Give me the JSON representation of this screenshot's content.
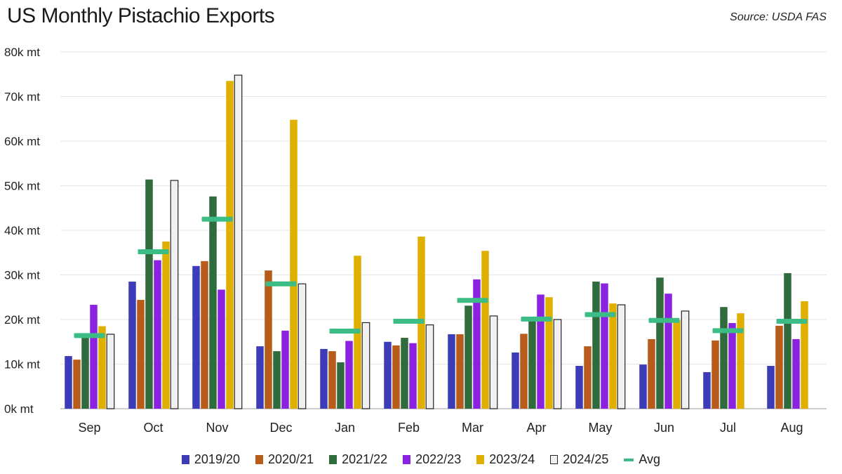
{
  "chart_data": {
    "type": "bar",
    "title": "US Monthly Pistachio Exports",
    "source": "Source: USDA FAS",
    "categories": [
      "Sep",
      "Oct",
      "Nov",
      "Dec",
      "Jan",
      "Feb",
      "Mar",
      "Apr",
      "May",
      "Jun",
      "Jul",
      "Aug"
    ],
    "ylim": [
      0,
      80
    ],
    "yticks": [
      0,
      10,
      20,
      30,
      40,
      50,
      60,
      70,
      80
    ],
    "ytick_labels": [
      "0k mt",
      "10k mt",
      "20k mt",
      "30k mt",
      "40k mt",
      "50k mt",
      "60k mt",
      "70k mt",
      "80k mt"
    ],
    "grid": true,
    "legend_position": "bottom",
    "series": [
      {
        "name": "2019/20",
        "color": "#3c3cb8",
        "values": [
          11.8,
          28.5,
          32.0,
          14.0,
          13.4,
          15.0,
          16.7,
          12.6,
          9.6,
          9.9,
          8.2,
          9.6
        ]
      },
      {
        "name": "2020/21",
        "color": "#b85c1c",
        "values": [
          11.0,
          24.4,
          33.1,
          31.0,
          12.9,
          14.2,
          16.7,
          16.8,
          14.0,
          15.6,
          15.3,
          18.6
        ]
      },
      {
        "name": "2021/22",
        "color": "#2f6b3d",
        "values": [
          16.8,
          51.4,
          47.6,
          12.9,
          10.4,
          15.9,
          23.1,
          20.0,
          28.5,
          29.4,
          22.8,
          30.4
        ]
      },
      {
        "name": "2022/23",
        "color": "#8a22e0",
        "values": [
          23.3,
          33.3,
          26.7,
          17.5,
          15.2,
          14.7,
          29.0,
          25.6,
          28.1,
          25.8,
          19.2,
          15.6
        ]
      },
      {
        "name": "2023/24",
        "color": "#e0b000",
        "values": [
          18.5,
          37.5,
          73.5,
          64.8,
          34.3,
          38.6,
          35.4,
          25.0,
          23.6,
          19.8,
          21.4,
          24.1
        ]
      },
      {
        "name": "2024/25",
        "color": "#f0f0f0",
        "stroke": "#222222",
        "values": [
          16.7,
          51.2,
          74.8,
          28.0,
          19.3,
          18.8,
          20.8,
          20.0,
          23.3,
          21.9,
          null,
          null
        ]
      }
    ],
    "avg": {
      "name": "Avg",
      "color": "#3dbd86",
      "values": [
        16.4,
        35.2,
        42.5,
        28.0,
        17.4,
        19.6,
        24.3,
        20.1,
        21.1,
        19.8,
        17.5,
        19.6
      ]
    }
  }
}
